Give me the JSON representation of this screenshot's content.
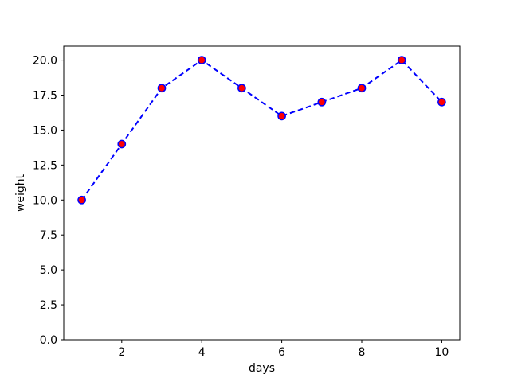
{
  "chart_data": {
    "type": "line",
    "title": "",
    "xlabel": "days",
    "ylabel": "weight",
    "x": [
      1,
      2,
      3,
      4,
      5,
      6,
      7,
      8,
      9,
      10
    ],
    "series": [
      {
        "name": "weight",
        "values": [
          10,
          14,
          18,
          20,
          18,
          16,
          17,
          18,
          20,
          17
        ]
      }
    ],
    "xlim": [
      0.55,
      10.45
    ],
    "ylim": [
      0,
      21
    ],
    "xticks": [
      2,
      4,
      6,
      8,
      10
    ],
    "xtick_labels": [
      "2",
      "4",
      "6",
      "8",
      "10"
    ],
    "yticks": [
      0.0,
      2.5,
      5.0,
      7.5,
      10.0,
      12.5,
      15.0,
      17.5,
      20.0
    ],
    "ytick_labels": [
      "0.0",
      "2.5",
      "5.0",
      "7.5",
      "10.0",
      "12.5",
      "15.0",
      "17.5",
      "20.0"
    ],
    "grid": false,
    "legend": null,
    "line_style": "dashed",
    "line_color": "#0000ff",
    "marker": "circle",
    "marker_fill": "#ff0000",
    "marker_edge": "#0000ff",
    "axis_color": "#000000",
    "background": "#ffffff"
  }
}
